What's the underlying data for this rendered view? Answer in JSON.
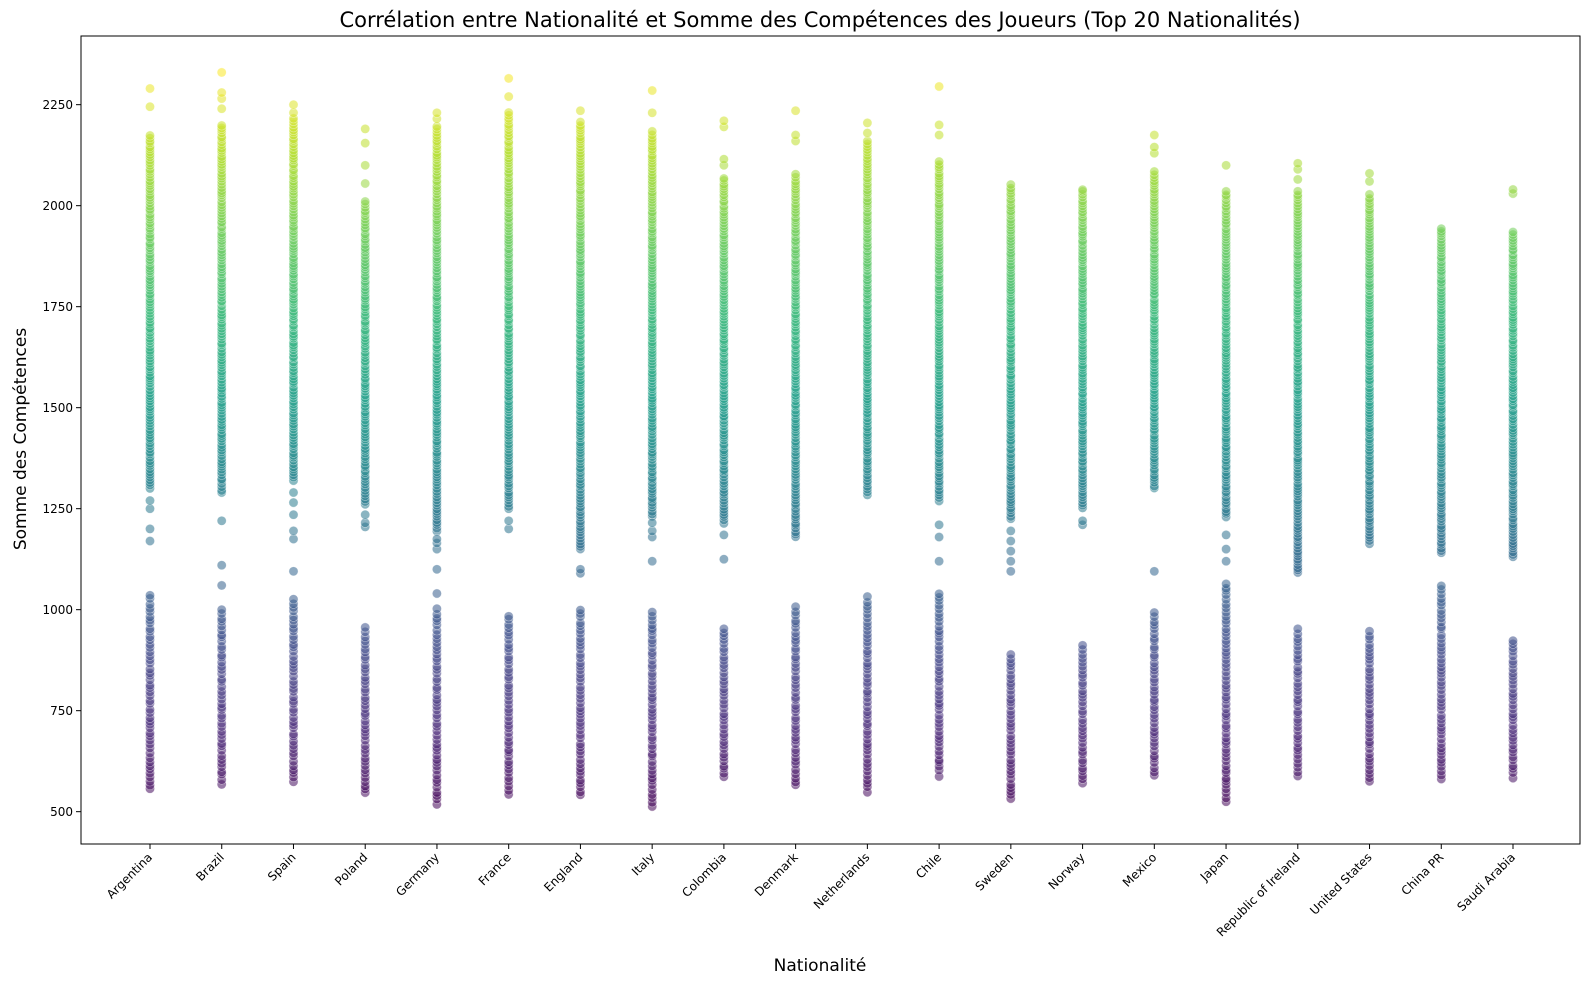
{
  "chart_data": {
    "type": "scatter",
    "title": "Corrélation entre Nationalité et Somme des Compétences des Joueurs (Top 20 Nationalités)",
    "xlabel": "Nationalité",
    "ylabel": "Somme des Compétences",
    "ylim": [
      420,
      2420
    ],
    "y_ticks": [
      500,
      750,
      1000,
      1250,
      1500,
      1750,
      2000,
      2250
    ],
    "grid": false,
    "legend": "none",
    "colormap": "viridis",
    "color_encoding": "y",
    "color_range": [
      500,
      2340
    ],
    "marker_alpha": 0.55,
    "categories": [
      "Argentina",
      "Brazil",
      "Spain",
      "Poland",
      "Germany",
      "France",
      "England",
      "Italy",
      "Colombia",
      "Denmark",
      "Netherlands",
      "Chile",
      "Sweden",
      "Norway",
      "Mexico",
      "Japan",
      "Republic of Ireland",
      "United States",
      "China PR",
      "Saudi Arabia"
    ],
    "ranges": [
      {
        "category": "Argentina",
        "low_cluster": [
          555,
          1040
        ],
        "high_cluster": [
          1300,
          2175
        ],
        "extra_points": [
          1170,
          1200,
          1250,
          1270,
          2245,
          2290
        ]
      },
      {
        "category": "Brazil",
        "low_cluster": [
          570,
          1000
        ],
        "high_cluster": [
          1290,
          2200
        ],
        "extra_points": [
          1060,
          1110,
          1220,
          2240,
          2265,
          2280,
          2330
        ]
      },
      {
        "category": "Spain",
        "low_cluster": [
          575,
          1025
        ],
        "high_cluster": [
          1320,
          2220
        ],
        "extra_points": [
          1095,
          1175,
          1195,
          1235,
          1265,
          1290,
          2230,
          2250
        ]
      },
      {
        "category": "Poland",
        "low_cluster": [
          545,
          960
        ],
        "high_cluster": [
          1260,
          2015
        ],
        "extra_points": [
          1205,
          1215,
          1235,
          2055,
          2100,
          2155,
          2190
        ]
      },
      {
        "category": "Germany",
        "low_cluster": [
          520,
          1000
        ],
        "high_cluster": [
          1195,
          2200
        ],
        "extra_points": [
          1040,
          1100,
          1150,
          1165,
          1175,
          2215,
          2230
        ]
      },
      {
        "category": "France",
        "low_cluster": [
          545,
          985
        ],
        "high_cluster": [
          1250,
          2230
        ],
        "extra_points": [
          1200,
          1220,
          2270,
          2315
        ]
      },
      {
        "category": "England",
        "low_cluster": [
          540,
          1005
        ],
        "high_cluster": [
          1150,
          2210
        ],
        "extra_points": [
          1090,
          1100,
          2235
        ]
      },
      {
        "category": "Italy",
        "low_cluster": [
          515,
          1000
        ],
        "high_cluster": [
          1230,
          2185
        ],
        "extra_points": [
          1120,
          1180,
          1195,
          1215,
          2230,
          2285
        ]
      },
      {
        "category": "Colombia",
        "low_cluster": [
          585,
          960
        ],
        "high_cluster": [
          1215,
          2070
        ],
        "extra_points": [
          1125,
          1185,
          2100,
          2115,
          2195,
          2210
        ]
      },
      {
        "category": "Denmark",
        "low_cluster": [
          565,
          1010
        ],
        "high_cluster": [
          1180,
          2080
        ],
        "extra_points": [
          2160,
          2175,
          2235
        ]
      },
      {
        "category": "Netherlands",
        "low_cluster": [
          550,
          1035
        ],
        "high_cluster": [
          1285,
          2160
        ],
        "extra_points": [
          2180,
          2205
        ]
      },
      {
        "category": "Chile",
        "low_cluster": [
          590,
          1045
        ],
        "high_cluster": [
          1270,
          2110
        ],
        "extra_points": [
          1120,
          1180,
          1210,
          2175,
          2200,
          2295
        ]
      },
      {
        "category": "Sweden",
        "low_cluster": [
          530,
          890
        ],
        "high_cluster": [
          1225,
          2055
        ],
        "extra_points": [
          1095,
          1120,
          1145,
          1170,
          1195
        ]
      },
      {
        "category": "Norway",
        "low_cluster": [
          570,
          910
        ],
        "high_cluster": [
          1250,
          2045
        ],
        "extra_points": [
          1210,
          1220
        ]
      },
      {
        "category": "Mexico",
        "low_cluster": [
          590,
          990
        ],
        "high_cluster": [
          1300,
          2085
        ],
        "extra_points": [
          1095,
          2130,
          2145,
          2175
        ]
      },
      {
        "category": "Japan",
        "low_cluster": [
          525,
          1065
        ],
        "high_cluster": [
          1230,
          2040
        ],
        "extra_points": [
          1120,
          1150,
          1185,
          2100
        ]
      },
      {
        "category": "Republic of Ireland",
        "low_cluster": [
          590,
          950
        ],
        "high_cluster": [
          1090,
          2040
        ],
        "extra_points": [
          2065,
          2090,
          2105
        ]
      },
      {
        "category": "United States",
        "low_cluster": [
          575,
          945
        ],
        "high_cluster": [
          1165,
          2030
        ],
        "extra_points": [
          2060,
          2080
        ]
      },
      {
        "category": "China PR",
        "low_cluster": [
          580,
          1060
        ],
        "high_cluster": [
          1140,
          1950
        ],
        "extra_points": []
      },
      {
        "category": "Saudi Arabia",
        "low_cluster": [
          585,
          925
        ],
        "high_cluster": [
          1130,
          1940
        ],
        "extra_points": [
          2030,
          2040
        ]
      }
    ]
  }
}
